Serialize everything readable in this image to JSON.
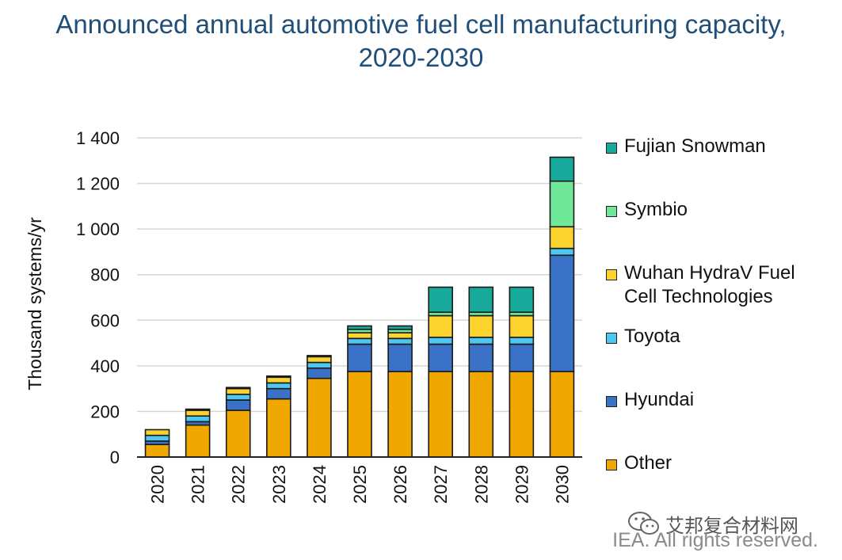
{
  "chart_data": {
    "type": "bar",
    "stacked": true,
    "title_lines": [
      "Announced annual automotive fuel cell manufacturing capacity,",
      "2020-2030"
    ],
    "ylabel": "Thousand systems/yr",
    "xlabel": "",
    "ylim": [
      0,
      1400
    ],
    "yticks": [
      0,
      200,
      400,
      600,
      800,
      1000,
      1200,
      1400
    ],
    "ytick_labels": [
      "0",
      "200",
      "400",
      "600",
      "800",
      "1 000",
      "1 200",
      "1 400"
    ],
    "categories": [
      "2020",
      "2021",
      "2022",
      "2023",
      "2024",
      "2025",
      "2026",
      "2027",
      "2028",
      "2029",
      "2030"
    ],
    "series": [
      {
        "name": "Other",
        "color": "#f0a800",
        "values": [
          55,
          140,
          205,
          255,
          345,
          375,
          375,
          375,
          375,
          375,
          375
        ]
      },
      {
        "name": "Hyundai",
        "color": "#3a72c8",
        "values": [
          15,
          15,
          45,
          45,
          45,
          120,
          120,
          120,
          120,
          120,
          510
        ]
      },
      {
        "name": "Toyota",
        "color": "#4ec8f0",
        "values": [
          25,
          25,
          25,
          25,
          25,
          25,
          25,
          30,
          30,
          30,
          30
        ]
      },
      {
        "name": "Wuhan HydraV Fuel\nCell Technologies",
        "color": "#fbd32c",
        "values": [
          25,
          25,
          25,
          25,
          25,
          25,
          25,
          95,
          95,
          95,
          95
        ]
      },
      {
        "name": "Symbio",
        "color": "#6fe89a",
        "values": [
          0,
          5,
          5,
          5,
          5,
          15,
          15,
          15,
          15,
          15,
          200
        ]
      },
      {
        "name": "Fujian Snowman",
        "color": "#17a99a",
        "values": [
          0,
          0,
          0,
          0,
          0,
          15,
          15,
          110,
          110,
          110,
          105
        ]
      }
    ],
    "legend_position": "right",
    "grid": true
  },
  "watermark_text": "艾邦复合材料网",
  "footer_text": "IEA. All rights reserved."
}
